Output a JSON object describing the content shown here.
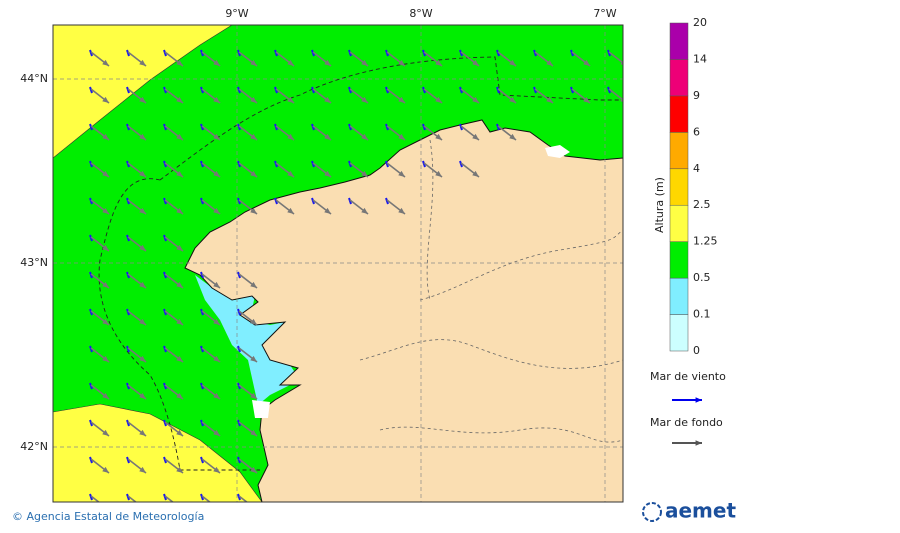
{
  "map": {
    "lon_ticks": [
      {
        "value": -9,
        "label": "9°W"
      },
      {
        "value": -8,
        "label": "8°W"
      },
      {
        "value": -7,
        "label": "7°W"
      }
    ],
    "lat_ticks": [
      {
        "value": 44,
        "label": "44°N"
      },
      {
        "value": 43,
        "label": "43°N"
      },
      {
        "value": 42,
        "label": "42°N"
      }
    ],
    "colorbar": {
      "title": "Altura (m)",
      "levels": [
        0,
        0.1,
        0.5,
        1.25,
        2.5,
        4,
        6,
        9,
        14,
        20
      ],
      "colors": [
        "#ccffff",
        "#80eeff",
        "#00ee00",
        "#ffff44",
        "#ffd700",
        "#ffaa00",
        "#ff0000",
        "#ee0077",
        "#aa00aa"
      ]
    },
    "legend": [
      {
        "label": "Mar de viento",
        "color": "#0000ee"
      },
      {
        "label": "Mar de fondo",
        "color": "#555555"
      }
    ],
    "footer": "© Agencia Estatal de Meteorología",
    "logo": "aemet"
  }
}
